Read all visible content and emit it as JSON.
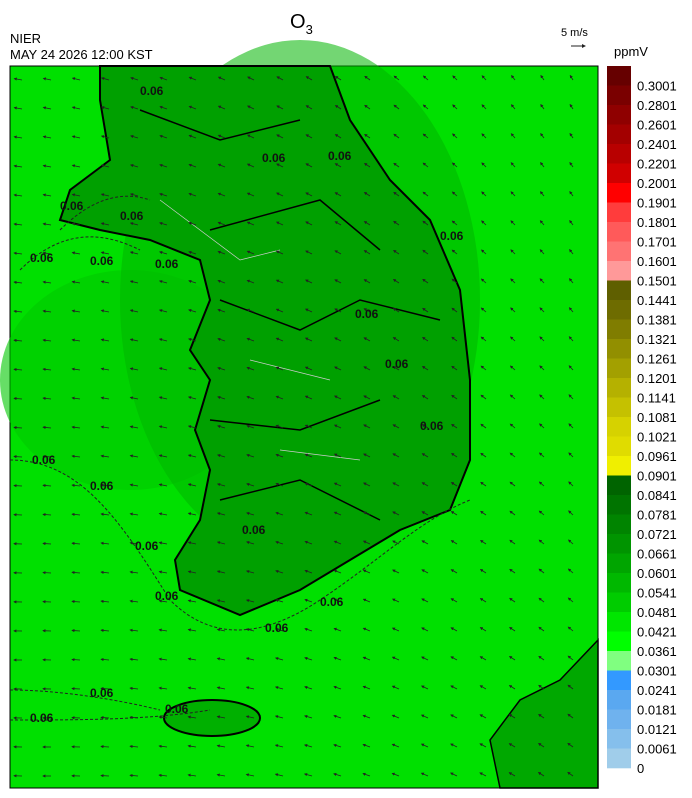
{
  "header": {
    "title": "O",
    "title_subscript": "3",
    "agency": "NIER",
    "datetime": "MAY 24 2026 12:00 KST",
    "wind_scale": "5 m/s"
  },
  "map": {
    "contour_label": "0.06"
  },
  "colorbar": {
    "unit": "ppmV",
    "levels": [
      {
        "value": 0.3001,
        "color": "#660000"
      },
      {
        "value": 0.2801,
        "color": "#7a0000"
      },
      {
        "value": 0.2601,
        "color": "#8f0000"
      },
      {
        "value": 0.2401,
        "color": "#a30000"
      },
      {
        "value": 0.2201,
        "color": "#b80000"
      },
      {
        "value": 0.2001,
        "color": "#d00000"
      },
      {
        "value": 0.1901,
        "color": "#ff0000"
      },
      {
        "value": 0.1801,
        "color": "#ff3c3c"
      },
      {
        "value": 0.1701,
        "color": "#ff5a5a"
      },
      {
        "value": 0.1601,
        "color": "#ff7373"
      },
      {
        "value": 0.1501,
        "color": "#ff9999"
      },
      {
        "value": 0.1441,
        "color": "#5f5f00"
      },
      {
        "value": 0.1381,
        "color": "#6e6c00"
      },
      {
        "value": 0.1321,
        "color": "#807d00"
      },
      {
        "value": 0.1261,
        "color": "#928f00"
      },
      {
        "value": 0.1201,
        "color": "#a3a000"
      },
      {
        "value": 0.1141,
        "color": "#b5b100"
      },
      {
        "value": 0.1081,
        "color": "#c5c100"
      },
      {
        "value": 0.1021,
        "color": "#d6d200"
      },
      {
        "value": 0.0961,
        "color": "#e0dc00"
      },
      {
        "value": 0.0901,
        "color": "#f0ef00"
      },
      {
        "value": 0.0841,
        "color": "#006400"
      },
      {
        "value": 0.0781,
        "color": "#007400"
      },
      {
        "value": 0.0721,
        "color": "#008400"
      },
      {
        "value": 0.0661,
        "color": "#009400"
      },
      {
        "value": 0.0601,
        "color": "#00a500"
      },
      {
        "value": 0.0541,
        "color": "#00b800"
      },
      {
        "value": 0.0481,
        "color": "#00cc00"
      },
      {
        "value": 0.0421,
        "color": "#00e600"
      },
      {
        "value": 0.0361,
        "color": "#00ff00"
      },
      {
        "value": 0.0301,
        "color": "#80ff80"
      },
      {
        "value": 0.0241,
        "color": "#3399ff"
      },
      {
        "value": 0.0181,
        "color": "#5aa8f0"
      },
      {
        "value": 0.0121,
        "color": "#6fb2ee"
      },
      {
        "value": 0.0061,
        "color": "#85bfec"
      },
      {
        "value": 0,
        "color": "#a0cdea"
      }
    ]
  }
}
